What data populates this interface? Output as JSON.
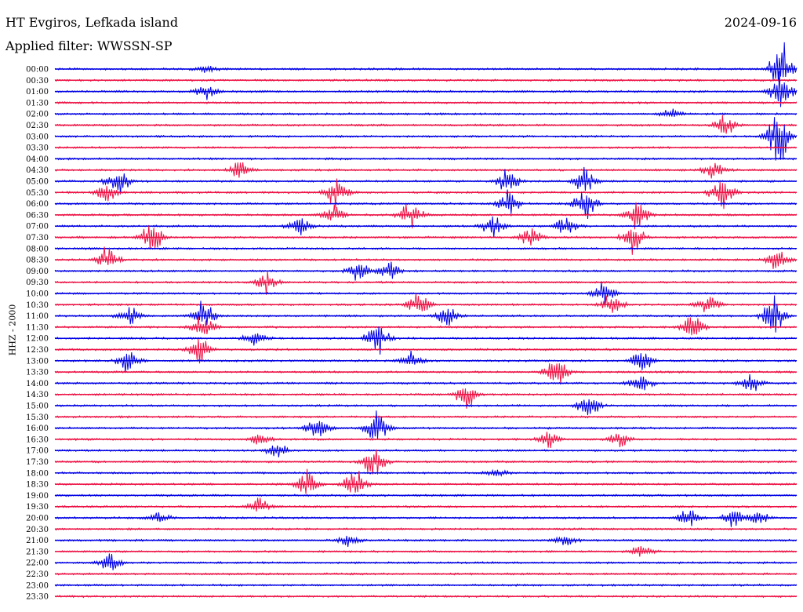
{
  "header": {
    "station": "HT Evgiros, Lefkada island",
    "filter": "Applied filter: WWSSN-SP",
    "date": "2024-09-16"
  },
  "axis": {
    "ylabel": "HHZ - 2000"
  },
  "colors": {
    "trace_a": "#0000e6",
    "trace_b": "#ee1144",
    "background": "#ffffff",
    "text": "#000000"
  },
  "chart_data": {
    "type": "line",
    "title": "HT Evgiros, Lefkada island",
    "subtitle": "Applied filter: WWSSN-SP",
    "ylabel": "HHZ - 2000",
    "traces_per_row": 1,
    "row_times": [
      "00:00",
      "00:30",
      "01:00",
      "01:30",
      "02:00",
      "02:30",
      "03:00",
      "03:30",
      "04:00",
      "04:30",
      "05:00",
      "05:30",
      "06:00",
      "06:30",
      "07:00",
      "07:30",
      "08:00",
      "08:30",
      "09:00",
      "09:30",
      "10:00",
      "10:30",
      "11:00",
      "11:30",
      "12:00",
      "12:30",
      "13:00",
      "13:30",
      "14:00",
      "14:30",
      "15:00",
      "15:30",
      "16:00",
      "16:30",
      "17:00",
      "17:30",
      "18:00",
      "18:30",
      "19:00",
      "19:30",
      "20:00",
      "20:30",
      "21:00",
      "21:30",
      "22:00",
      "22:30",
      "23:00",
      "23:30"
    ],
    "row_colors": [
      "trace_a",
      "trace_b"
    ],
    "events": [
      {
        "row": 0,
        "x": 0.205,
        "amp": 6
      },
      {
        "row": 0,
        "x": 0.98,
        "amp": 40
      },
      {
        "row": 2,
        "x": 0.205,
        "amp": 10
      },
      {
        "row": 2,
        "x": 0.98,
        "amp": 30
      },
      {
        "row": 4,
        "x": 0.83,
        "amp": 6
      },
      {
        "row": 5,
        "x": 0.905,
        "amp": 16
      },
      {
        "row": 6,
        "x": 0.975,
        "amp": 40
      },
      {
        "row": 9,
        "x": 0.25,
        "amp": 12
      },
      {
        "row": 9,
        "x": 0.89,
        "amp": 14
      },
      {
        "row": 10,
        "x": 0.085,
        "amp": 20
      },
      {
        "row": 10,
        "x": 0.61,
        "amp": 18
      },
      {
        "row": 10,
        "x": 0.715,
        "amp": 20
      },
      {
        "row": 11,
        "x": 0.07,
        "amp": 16
      },
      {
        "row": 11,
        "x": 0.38,
        "amp": 26
      },
      {
        "row": 11,
        "x": 0.9,
        "amp": 28
      },
      {
        "row": 12,
        "x": 0.61,
        "amp": 20
      },
      {
        "row": 12,
        "x": 0.715,
        "amp": 22
      },
      {
        "row": 13,
        "x": 0.48,
        "amp": 20
      },
      {
        "row": 13,
        "x": 0.375,
        "amp": 18
      },
      {
        "row": 13,
        "x": 0.785,
        "amp": 22
      },
      {
        "row": 14,
        "x": 0.33,
        "amp": 16
      },
      {
        "row": 14,
        "x": 0.59,
        "amp": 16
      },
      {
        "row": 14,
        "x": 0.69,
        "amp": 16
      },
      {
        "row": 15,
        "x": 0.13,
        "amp": 24
      },
      {
        "row": 15,
        "x": 0.64,
        "amp": 18
      },
      {
        "row": 15,
        "x": 0.78,
        "amp": 22
      },
      {
        "row": 17,
        "x": 0.07,
        "amp": 20
      },
      {
        "row": 17,
        "x": 0.975,
        "amp": 18
      },
      {
        "row": 18,
        "x": 0.41,
        "amp": 16
      },
      {
        "row": 18,
        "x": 0.45,
        "amp": 14
      },
      {
        "row": 19,
        "x": 0.285,
        "amp": 16
      },
      {
        "row": 20,
        "x": 0.74,
        "amp": 18
      },
      {
        "row": 21,
        "x": 0.49,
        "amp": 18
      },
      {
        "row": 21,
        "x": 0.75,
        "amp": 16
      },
      {
        "row": 21,
        "x": 0.88,
        "amp": 14
      },
      {
        "row": 22,
        "x": 0.1,
        "amp": 14
      },
      {
        "row": 22,
        "x": 0.2,
        "amp": 22
      },
      {
        "row": 22,
        "x": 0.53,
        "amp": 16
      },
      {
        "row": 22,
        "x": 0.97,
        "amp": 30
      },
      {
        "row": 23,
        "x": 0.2,
        "amp": 22
      },
      {
        "row": 23,
        "x": 0.86,
        "amp": 22
      },
      {
        "row": 24,
        "x": 0.435,
        "amp": 22
      },
      {
        "row": 24,
        "x": 0.27,
        "amp": 10
      },
      {
        "row": 25,
        "x": 0.195,
        "amp": 20
      },
      {
        "row": 26,
        "x": 0.1,
        "amp": 18
      },
      {
        "row": 26,
        "x": 0.48,
        "amp": 12
      },
      {
        "row": 26,
        "x": 0.79,
        "amp": 18
      },
      {
        "row": 27,
        "x": 0.675,
        "amp": 22
      },
      {
        "row": 28,
        "x": 0.79,
        "amp": 16
      },
      {
        "row": 28,
        "x": 0.94,
        "amp": 14
      },
      {
        "row": 29,
        "x": 0.555,
        "amp": 20
      },
      {
        "row": 30,
        "x": 0.72,
        "amp": 18
      },
      {
        "row": 32,
        "x": 0.355,
        "amp": 18
      },
      {
        "row": 32,
        "x": 0.435,
        "amp": 28
      },
      {
        "row": 33,
        "x": 0.275,
        "amp": 10
      },
      {
        "row": 33,
        "x": 0.665,
        "amp": 12
      },
      {
        "row": 33,
        "x": 0.76,
        "amp": 12
      },
      {
        "row": 34,
        "x": 0.3,
        "amp": 10
      },
      {
        "row": 35,
        "x": 0.43,
        "amp": 22
      },
      {
        "row": 36,
        "x": 0.595,
        "amp": 8
      },
      {
        "row": 37,
        "x": 0.34,
        "amp": 20
      },
      {
        "row": 37,
        "x": 0.405,
        "amp": 22
      },
      {
        "row": 39,
        "x": 0.275,
        "amp": 12
      },
      {
        "row": 40,
        "x": 0.14,
        "amp": 8
      },
      {
        "row": 40,
        "x": 0.855,
        "amp": 14
      },
      {
        "row": 40,
        "x": 0.915,
        "amp": 16
      },
      {
        "row": 40,
        "x": 0.95,
        "amp": 10
      },
      {
        "row": 42,
        "x": 0.395,
        "amp": 8
      },
      {
        "row": 42,
        "x": 0.69,
        "amp": 8
      },
      {
        "row": 43,
        "x": 0.79,
        "amp": 10
      },
      {
        "row": 44,
        "x": 0.075,
        "amp": 14
      }
    ]
  }
}
